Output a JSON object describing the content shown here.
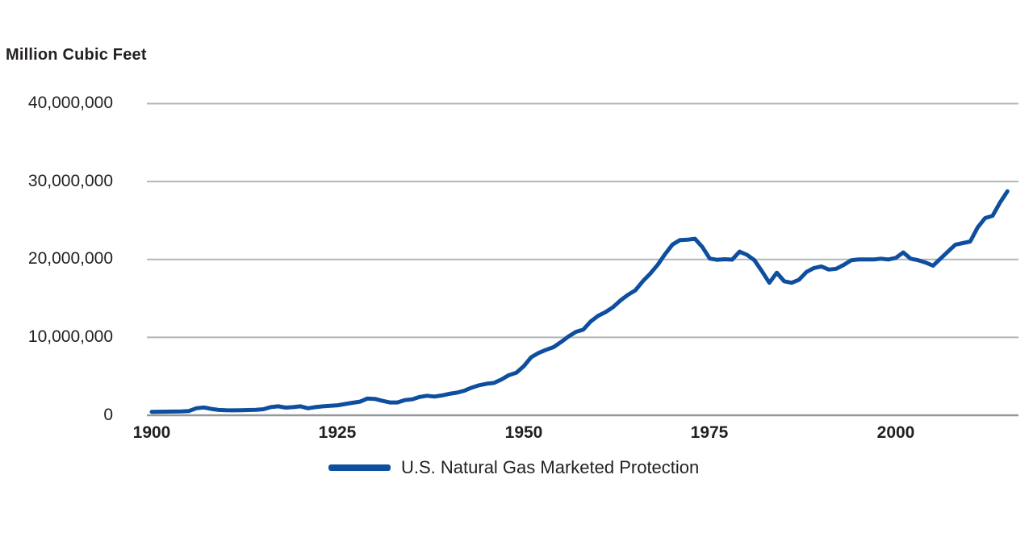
{
  "chart_data": {
    "type": "line",
    "title": "Million Cubic Feet",
    "xlabel": "",
    "ylabel": "Million Cubic Feet",
    "ylim": [
      0,
      40000000
    ],
    "xlim": [
      1900,
      2015
    ],
    "grid": "horizontal",
    "legend": {
      "position": "bottom-center",
      "entries": [
        {
          "label": "U.S. Natural Gas Marketed Protection",
          "color": "#0e4e9f"
        }
      ]
    },
    "colors": {
      "line": "#0e4e9f",
      "gridline": "#b3b5b8",
      "axis_line": "#95979a",
      "text": "#231f20"
    },
    "yticks": [
      {
        "value": 40000000,
        "label": "40,000,000"
      },
      {
        "value": 30000000,
        "label": "30,000,000"
      },
      {
        "value": 20000000,
        "label": "20,000,000"
      },
      {
        "value": 10000000,
        "label": "10,000,000"
      },
      {
        "value": 0,
        "label": "0"
      }
    ],
    "xticks": [
      {
        "value": 1900,
        "label": "1900"
      },
      {
        "value": 1925,
        "label": "1925"
      },
      {
        "value": 1950,
        "label": "1950"
      },
      {
        "value": 1975,
        "label": "1975"
      },
      {
        "value": 2000,
        "label": "2000"
      }
    ],
    "series": [
      {
        "name": "U.S. Natural Gas Marketed Protection",
        "color": "#0e4e9f",
        "x": [
          1900,
          1901,
          1902,
          1903,
          1904,
          1905,
          1906,
          1907,
          1908,
          1909,
          1910,
          1911,
          1912,
          1913,
          1914,
          1915,
          1916,
          1917,
          1918,
          1919,
          1920,
          1921,
          1922,
          1923,
          1924,
          1925,
          1926,
          1927,
          1928,
          1929,
          1930,
          1931,
          1932,
          1933,
          1934,
          1935,
          1936,
          1937,
          1938,
          1939,
          1940,
          1941,
          1942,
          1943,
          1944,
          1945,
          1946,
          1947,
          1948,
          1949,
          1950,
          1951,
          1952,
          1953,
          1954,
          1955,
          1956,
          1957,
          1958,
          1959,
          1960,
          1961,
          1962,
          1963,
          1964,
          1965,
          1966,
          1967,
          1968,
          1969,
          1970,
          1971,
          1972,
          1973,
          1974,
          1975,
          1976,
          1977,
          1978,
          1979,
          1980,
          1981,
          1982,
          1983,
          1984,
          1985,
          1986,
          1987,
          1988,
          1989,
          1990,
          1991,
          1992,
          1993,
          1994,
          1995,
          1996,
          1997,
          1998,
          1999,
          2000,
          2001,
          2002,
          2003,
          2004,
          2005,
          2006,
          2007,
          2008,
          2009,
          2010,
          2011,
          2012,
          2013,
          2014,
          2015
        ],
        "values": [
          450000,
          460000,
          470000,
          480000,
          500000,
          550000,
          900000,
          1000000,
          820000,
          680000,
          640000,
          630000,
          650000,
          670000,
          700000,
          780000,
          1050000,
          1150000,
          980000,
          1050000,
          1150000,
          900000,
          1050000,
          1150000,
          1220000,
          1280000,
          1450000,
          1600000,
          1750000,
          2150000,
          2100000,
          1850000,
          1650000,
          1650000,
          1950000,
          2050000,
          2350000,
          2500000,
          2400000,
          2550000,
          2750000,
          2900000,
          3150000,
          3550000,
          3850000,
          4050000,
          4150000,
          4600000,
          5150000,
          5450000,
          6300000,
          7450000,
          8000000,
          8400000,
          8750000,
          9400000,
          10100000,
          10700000,
          11000000,
          12050000,
          12770000,
          13250000,
          13880000,
          14750000,
          15460000,
          16040000,
          17200000,
          18170000,
          19320000,
          20700000,
          21920000,
          22490000,
          22530000,
          22650000,
          21600000,
          20110000,
          19950000,
          20030000,
          19970000,
          21000000,
          20600000,
          19900000,
          18500000,
          17000000,
          18300000,
          17200000,
          17000000,
          17400000,
          18400000,
          18900000,
          19100000,
          18700000,
          18800000,
          19300000,
          19900000,
          20000000,
          20000000,
          20000000,
          20100000,
          20000000,
          20200000,
          20900000,
          20100000,
          19900000,
          19600000,
          19200000,
          20100000,
          21000000,
          21900000,
          22100000,
          22300000,
          24100000,
          25300000,
          25600000,
          27300000,
          28750000
        ]
      }
    ]
  }
}
